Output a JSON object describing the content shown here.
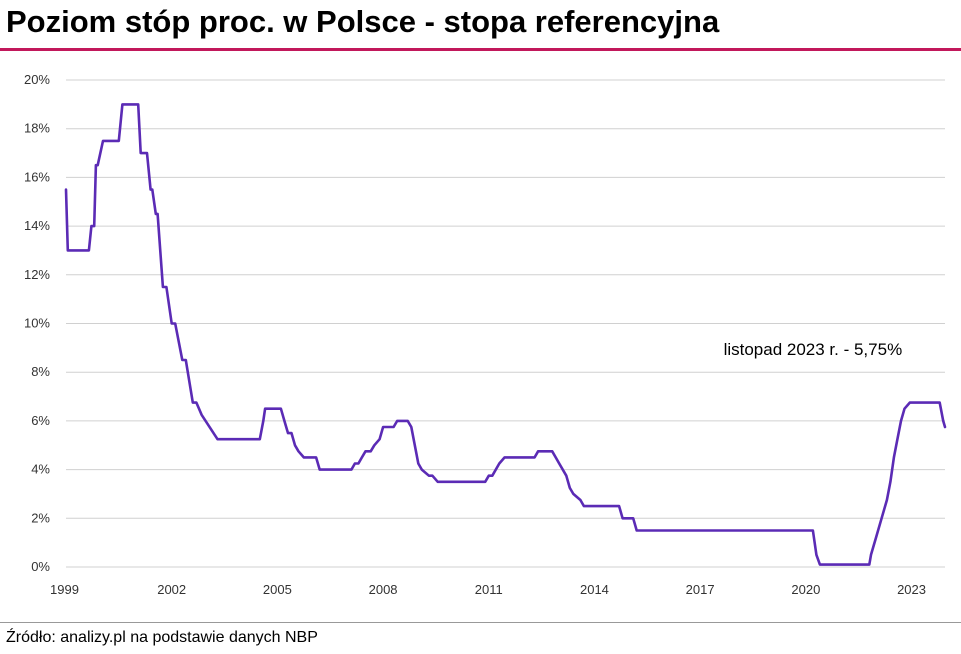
{
  "title": "Poziom stóp proc. w Polsce - stopa referencyjna",
  "source": "Źródło: analizy.pl na podstawie danych NBP",
  "colors": {
    "line": "#5b2bb5",
    "grid": "#d0d0d0",
    "accent": "#c2185b"
  },
  "chart_data": {
    "type": "line",
    "title": "Poziom stóp proc. w Polsce - stopa referencyjna",
    "xlabel": "",
    "ylabel": "",
    "xlim": [
      1999.0,
      2023.95
    ],
    "ylim": [
      0,
      20
    ],
    "yticks": [
      0,
      2,
      4,
      6,
      8,
      10,
      12,
      14,
      16,
      18,
      20
    ],
    "ytick_labels": [
      "0%",
      "2%",
      "4%",
      "6%",
      "8%",
      "10%",
      "12%",
      "14%",
      "16%",
      "18%",
      "20%"
    ],
    "xticks": [
      1999,
      2002,
      2005,
      2008,
      2011,
      2014,
      2017,
      2020,
      2023
    ],
    "xtick_labels": [
      "1999",
      "2002",
      "2005",
      "2008",
      "2011",
      "2014",
      "2017",
      "2020",
      "2023"
    ],
    "annotation": {
      "text": "listopad 2023 r. - 5,75%",
      "x": 2020.2,
      "y": 8.7
    },
    "series": [
      {
        "name": "stopa referencyjna",
        "x": [
          1999.0,
          1999.05,
          1999.65,
          1999.72,
          1999.8,
          1999.85,
          1999.9,
          2000.05,
          2000.15,
          2000.5,
          2000.6,
          2001.05,
          2001.12,
          2001.3,
          2001.4,
          2001.45,
          2001.55,
          2001.6,
          2001.75,
          2001.85,
          2002.0,
          2002.1,
          2002.3,
          2002.4,
          2002.6,
          2002.7,
          2002.85,
          2003.3,
          2003.5,
          2004.5,
          2004.6,
          2004.65,
          2005.1,
          2005.2,
          2005.3,
          2005.4,
          2005.5,
          2005.6,
          2005.75,
          2006.1,
          2006.2,
          2007.1,
          2007.2,
          2007.3,
          2007.4,
          2007.5,
          2007.65,
          2007.75,
          2007.9,
          2008.0,
          2008.3,
          2008.4,
          2008.7,
          2008.8,
          2009.0,
          2009.1,
          2009.3,
          2009.4,
          2009.55,
          2009.65,
          2010.9,
          2011.0,
          2011.1,
          2011.3,
          2011.45,
          2012.3,
          2012.4,
          2012.8,
          2012.9,
          2013.0,
          2013.2,
          2013.3,
          2013.4,
          2013.6,
          2013.7,
          2014.7,
          2014.8,
          2015.0,
          2015.1,
          2015.2,
          2020.2,
          2020.3,
          2020.4,
          2021.8,
          2021.85,
          2022.0,
          2022.15,
          2022.3,
          2022.4,
          2022.5,
          2022.6,
          2022.7,
          2022.8,
          2022.95,
          2023.7,
          2023.8,
          2023.9,
          2023.95
        ],
        "values": [
          15.5,
          13.0,
          13.0,
          14.0,
          14.0,
          16.5,
          16.5,
          17.5,
          17.5,
          17.5,
          19.0,
          19.0,
          17.0,
          17.0,
          15.5,
          15.5,
          14.5,
          14.5,
          11.5,
          11.5,
          10.0,
          10.0,
          8.5,
          8.5,
          6.75,
          6.75,
          6.25,
          5.25,
          5.25,
          5.25,
          6.0,
          6.5,
          6.5,
          6.0,
          5.5,
          5.5,
          5.0,
          4.75,
          4.5,
          4.5,
          4.0,
          4.0,
          4.25,
          4.25,
          4.5,
          4.75,
          4.75,
          5.0,
          5.25,
          5.75,
          5.75,
          6.0,
          6.0,
          5.75,
          4.25,
          4.0,
          3.75,
          3.75,
          3.5,
          3.5,
          3.5,
          3.75,
          3.75,
          4.25,
          4.5,
          4.5,
          4.75,
          4.75,
          4.5,
          4.25,
          3.75,
          3.25,
          3.0,
          2.75,
          2.5,
          2.5,
          2.0,
          2.0,
          2.0,
          1.5,
          1.5,
          0.5,
          0.1,
          0.1,
          0.5,
          1.25,
          2.0,
          2.75,
          3.5,
          4.5,
          5.25,
          6.0,
          6.5,
          6.75,
          6.75,
          6.75,
          6.0,
          5.75
        ]
      }
    ]
  }
}
